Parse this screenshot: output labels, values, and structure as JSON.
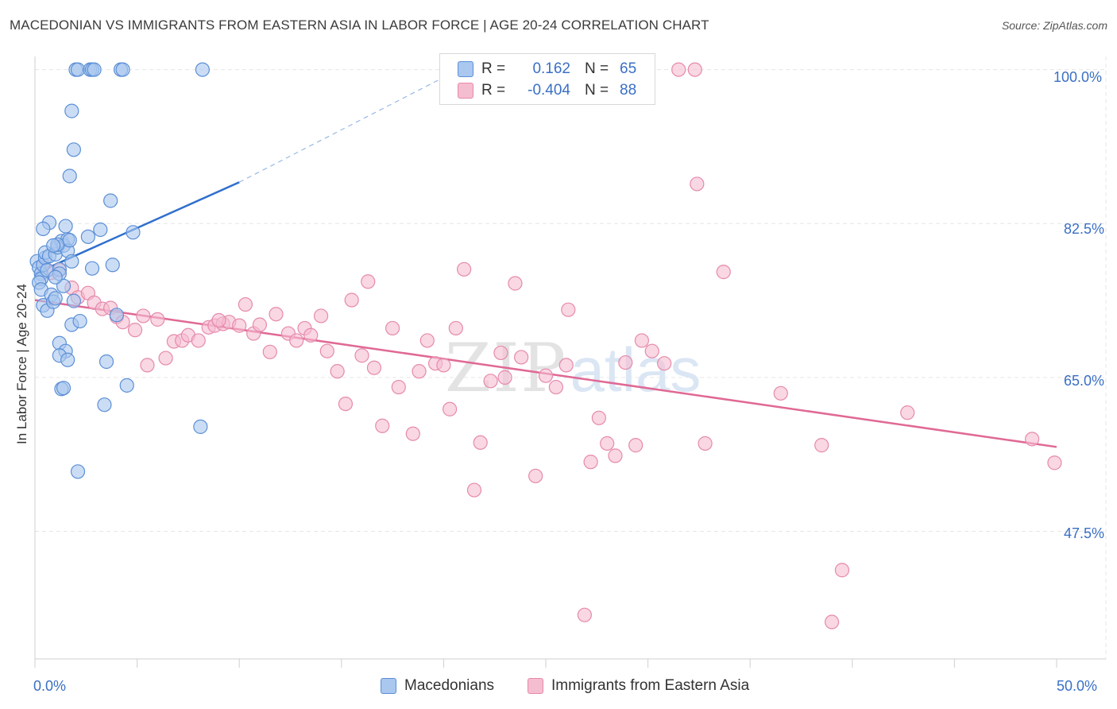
{
  "header": {
    "title": "MACEDONIAN VS IMMIGRANTS FROM EASTERN ASIA IN LABOR FORCE | AGE 20-24 CORRELATION CHART",
    "source": "Source: ZipAtlas.com"
  },
  "watermark": {
    "zip": "ZIP",
    "atlas": "atlas"
  },
  "legend_top": {
    "rows": [
      {
        "r_label": "R =",
        "r_value": "0.162",
        "n_label": "N =",
        "n_value": "65"
      },
      {
        "r_label": "R =",
        "r_value": "-0.404",
        "n_label": "N =",
        "n_value": "88"
      }
    ]
  },
  "legend_bottom": {
    "items": [
      {
        "label": "Macedonians"
      },
      {
        "label": "Immigrants from Eastern Asia"
      }
    ]
  },
  "colors": {
    "blue_fill": "#a9c7ef",
    "blue_stroke": "#5b8fd6",
    "blue_line": "#2f6fcd",
    "pink_fill": "#f5bdd0",
    "pink_stroke": "#e68aab",
    "pink_line": "#e06994",
    "tick_text": "#3a6fc4",
    "grid": "#e6e6e6"
  },
  "chart_data": {
    "type": "scatter",
    "xlabel": "",
    "ylabel": "In Labor Force | Age 20-24",
    "xlim": [
      0,
      50
    ],
    "ylim": [
      33,
      101.5
    ],
    "x_tick_labels": [
      {
        "value": 0,
        "label": "0.0%"
      },
      {
        "value": 50,
        "label": "50.0%"
      }
    ],
    "y_tick_labels": [
      {
        "value": 100,
        "label": "100.0%"
      },
      {
        "value": 82.5,
        "label": "82.5%"
      },
      {
        "value": 65,
        "label": "65.0%"
      },
      {
        "value": 47.5,
        "label": "47.5%"
      }
    ],
    "series": [
      {
        "name": "Macedonians",
        "color": "#a9c7ef",
        "stats": {
          "R": 0.162,
          "N": 65
        },
        "trend": {
          "x_start": 0,
          "y_start": 76.8,
          "x_solid_end": 10,
          "y_solid_end": 87.2,
          "x_dash_end": 22,
          "y_dash_end": 101.5
        },
        "points": [
          [
            0.1,
            78.2
          ],
          [
            0.2,
            77.5
          ],
          [
            0.3,
            76.8
          ],
          [
            0.3,
            76.2
          ],
          [
            0.4,
            77.8
          ],
          [
            0.5,
            78.6
          ],
          [
            0.6,
            77.2
          ],
          [
            0.2,
            75.8
          ],
          [
            0.3,
            75.0
          ],
          [
            0.4,
            73.2
          ],
          [
            0.6,
            72.6
          ],
          [
            0.8,
            74.4
          ],
          [
            0.9,
            73.6
          ],
          [
            1.0,
            74.0
          ],
          [
            0.5,
            79.2
          ],
          [
            0.7,
            78.8
          ],
          [
            1.0,
            79.0
          ],
          [
            1.1,
            79.8
          ],
          [
            1.3,
            80.5
          ],
          [
            1.4,
            80.0
          ],
          [
            1.6,
            80.7
          ],
          [
            1.6,
            79.4
          ],
          [
            1.8,
            78.2
          ],
          [
            1.2,
            77.3
          ],
          [
            0.7,
            82.6
          ],
          [
            0.4,
            81.9
          ],
          [
            1.5,
            82.2
          ],
          [
            1.1,
            80.1
          ],
          [
            1.7,
            80.6
          ],
          [
            1.2,
            76.8
          ],
          [
            1.4,
            75.4
          ],
          [
            1.2,
            68.9
          ],
          [
            1.5,
            68.0
          ],
          [
            1.2,
            67.5
          ],
          [
            1.6,
            67.0
          ],
          [
            1.3,
            63.7
          ],
          [
            1.4,
            63.8
          ],
          [
            1.8,
            71.0
          ],
          [
            2.2,
            71.4
          ],
          [
            2.8,
            77.4
          ],
          [
            3.2,
            81.8
          ],
          [
            2.6,
            81.0
          ],
          [
            3.7,
            85.1
          ],
          [
            3.5,
            66.8
          ],
          [
            3.4,
            61.9
          ],
          [
            4.0,
            72.1
          ],
          [
            4.5,
            64.1
          ],
          [
            3.8,
            77.8
          ],
          [
            4.8,
            81.5
          ],
          [
            1.9,
            90.9
          ],
          [
            1.8,
            95.3
          ],
          [
            1.7,
            87.9
          ],
          [
            2.1,
            54.3
          ],
          [
            8.1,
            59.4
          ],
          [
            2.0,
            100.0
          ],
          [
            2.1,
            100.0
          ],
          [
            2.7,
            100.0
          ],
          [
            2.8,
            100.0
          ],
          [
            2.9,
            100.0
          ],
          [
            4.2,
            100.0
          ],
          [
            4.3,
            100.0
          ],
          [
            8.2,
            100.0
          ],
          [
            0.9,
            80.0
          ],
          [
            1.0,
            76.4
          ],
          [
            1.9,
            73.7
          ]
        ]
      },
      {
        "name": "Immigrants from Eastern Asia",
        "color": "#f5bdd0",
        "stats": {
          "R": -0.404,
          "N": 88
        },
        "trend": {
          "x_start": 0,
          "y_start": 73.8,
          "x_end": 50,
          "y_end": 57.1
        },
        "points": [
          [
            0.4,
            77.8
          ],
          [
            0.8,
            76.9
          ],
          [
            1.2,
            77.2
          ],
          [
            1.8,
            75.2
          ],
          [
            2.1,
            74.1
          ],
          [
            2.6,
            74.6
          ],
          [
            2.9,
            73.5
          ],
          [
            3.3,
            72.8
          ],
          [
            3.7,
            72.9
          ],
          [
            4.0,
            71.9
          ],
          [
            4.3,
            71.3
          ],
          [
            4.9,
            70.4
          ],
          [
            5.3,
            72.0
          ],
          [
            5.5,
            66.4
          ],
          [
            6.0,
            71.6
          ],
          [
            6.4,
            67.2
          ],
          [
            6.8,
            69.1
          ],
          [
            7.2,
            69.2
          ],
          [
            7.5,
            69.8
          ],
          [
            8.0,
            69.2
          ],
          [
            8.5,
            70.7
          ],
          [
            8.8,
            70.9
          ],
          [
            9.2,
            71.1
          ],
          [
            9.5,
            71.3
          ],
          [
            10.0,
            70.9
          ],
          [
            10.3,
            73.3
          ],
          [
            10.7,
            70.0
          ],
          [
            11.0,
            71.0
          ],
          [
            11.5,
            67.9
          ],
          [
            11.8,
            72.2
          ],
          [
            12.4,
            70.0
          ],
          [
            12.8,
            69.2
          ],
          [
            13.2,
            70.6
          ],
          [
            13.5,
            69.8
          ],
          [
            14.0,
            72.0
          ],
          [
            14.3,
            68.0
          ],
          [
            14.8,
            65.7
          ],
          [
            15.2,
            62.0
          ],
          [
            15.5,
            73.8
          ],
          [
            16.0,
            67.5
          ],
          [
            16.3,
            75.9
          ],
          [
            16.6,
            66.1
          ],
          [
            17.0,
            59.5
          ],
          [
            17.5,
            70.6
          ],
          [
            17.8,
            63.9
          ],
          [
            18.5,
            58.6
          ],
          [
            18.8,
            65.7
          ],
          [
            19.2,
            69.2
          ],
          [
            19.6,
            66.6
          ],
          [
            20.0,
            66.4
          ],
          [
            20.3,
            61.4
          ],
          [
            20.6,
            70.6
          ],
          [
            21.0,
            77.3
          ],
          [
            21.5,
            52.2
          ],
          [
            21.8,
            57.6
          ],
          [
            22.3,
            64.6
          ],
          [
            22.8,
            67.8
          ],
          [
            23.0,
            65.0
          ],
          [
            23.5,
            75.7
          ],
          [
            23.8,
            67.3
          ],
          [
            24.5,
            53.8
          ],
          [
            25.0,
            65.2
          ],
          [
            25.5,
            63.9
          ],
          [
            26.0,
            66.4
          ],
          [
            26.1,
            72.7
          ],
          [
            26.9,
            38.0
          ],
          [
            27.2,
            55.4
          ],
          [
            27.6,
            60.4
          ],
          [
            28.0,
            57.5
          ],
          [
            28.4,
            56.1
          ],
          [
            28.9,
            66.7
          ],
          [
            29.4,
            57.3
          ],
          [
            29.7,
            69.2
          ],
          [
            30.2,
            68.0
          ],
          [
            30.8,
            66.6
          ],
          [
            31.5,
            100.0
          ],
          [
            32.3,
            100.0
          ],
          [
            32.4,
            87.0
          ],
          [
            32.8,
            57.5
          ],
          [
            33.7,
            77.0
          ],
          [
            36.5,
            63.2
          ],
          [
            38.5,
            57.3
          ],
          [
            39.0,
            37.2
          ],
          [
            39.5,
            43.1
          ],
          [
            42.7,
            61.0
          ],
          [
            48.8,
            58.0
          ],
          [
            49.9,
            55.3
          ],
          [
            9.0,
            71.5
          ]
        ]
      }
    ]
  }
}
